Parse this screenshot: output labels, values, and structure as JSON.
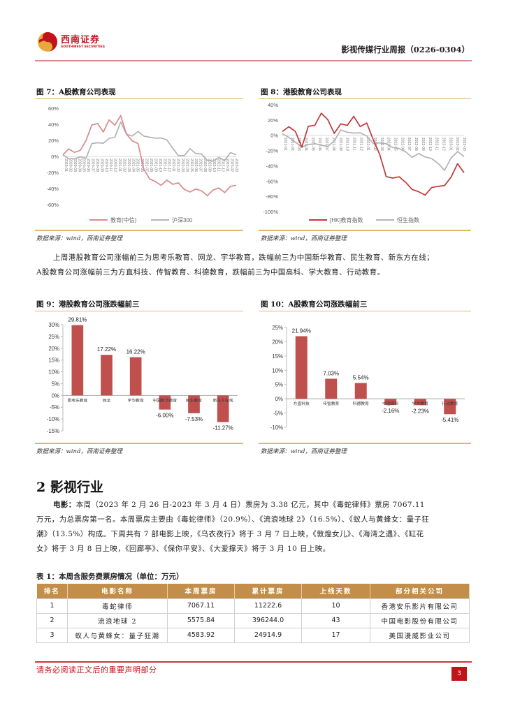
{
  "header": {
    "logo_name": "西南证券",
    "logo_sub": "SOUTHWEST SECURITIES",
    "report_title": "影视传媒行业周报（0226-0304）",
    "colors": {
      "brand_red": "#c0141b",
      "rule": "#d78b8f"
    }
  },
  "figures": {
    "fig7": {
      "title": "图 7：A股教育公司表现",
      "source": "数据来源：wind，西南证券整理"
    },
    "fig8": {
      "title": "图 8：港股教育公司表现",
      "source": "数据来源：wind，西南证券整理"
    },
    "fig9": {
      "title": "图 9：港股教育公司涨跌幅前三",
      "source": "数据来源：wind，西南证券整理"
    },
    "fig10": {
      "title": "图 10：A股教育公司涨跌幅前三",
      "source": "数据来源：wind，西南证券整理"
    }
  },
  "paragraph1": "上周港股教育公司涨幅前三为思考乐教育、网龙、宇华教育，跌幅前三为中国新华教育、民生教育、新东方在线；A股教育公司涨幅前三为方直科技、传智教育、科德教育，跌幅前三为中国高科、学大教育、行动教育。",
  "section": {
    "number": "2",
    "title": "影视行业"
  },
  "paragraph2": {
    "lead": "电影：",
    "body": "本周（2023 年 2 月 26 日-2023 年 3 月 4 日）票房为 3.38 亿元，其中《毒蛇律师》票房 7067.11 万元，为总票房第一名。本周票房主要由《毒蛇律师》（20.9%）、《流浪地球 2》（16.5%）、《蚁人与黄蜂女：量子狂潮》（13.5%）构成。下周共有 7 部电影上映，《乌衣夜行》将于 3 月 7 日上映，《敦煌女儿》、《海湾之遇》、《缸花女》将于 3 月 8 日上映，《回廊亭》、《保你平安》、《大爱撑天》将于 3 月 10 日上映。"
  },
  "table": {
    "title": "表 1：本周含服务费票房情况（单位：万元）",
    "headers": [
      "排名",
      "电影名称",
      "本周票房",
      "累计票房",
      "上线天数",
      "部分相关公司"
    ],
    "rows": [
      [
        "1",
        "毒蛇律师",
        "7067.11",
        "11222.6",
        "10",
        "香港安乐影片有限公司"
      ],
      [
        "2",
        "流浪地球 2",
        "5575.84",
        "396244.0",
        "43",
        "中国电影股份有限公司"
      ],
      [
        "3",
        "蚁人与黄蜂女：量子狂潮",
        "4583.92",
        "24914.9",
        "17",
        "美国漫威影业公司"
      ]
    ],
    "header_color": "#c38e49"
  },
  "footer": {
    "disclaimer": "请务必阅读正文后的重要声明部分",
    "page": "3"
  },
  "chart_data": [
    {
      "id": "fig7",
      "type": "line",
      "title": "图 7：A股教育公司表现",
      "ylabel": "",
      "xlabel": "",
      "yticks": [
        "60%",
        "40%",
        "20%",
        "0%",
        "-20%",
        "-40%",
        "-60%"
      ],
      "ylim": [
        -60,
        60
      ],
      "x_range": "2020-01 to 2023-03 (monthly ticks, rotated)",
      "legend_position": "bottom",
      "series": [
        {
          "name": "教育(中信)",
          "color": "#d9898b",
          "values": [
            2,
            10,
            4,
            8,
            20,
            38,
            42,
            30,
            45,
            40,
            50,
            28,
            20,
            15,
            -15,
            -28,
            -32,
            -35,
            -30,
            -35,
            -32,
            -42,
            -44,
            -40,
            -44,
            -48,
            -42,
            -40,
            -44,
            -38,
            -36
          ]
        },
        {
          "name": "沪深300",
          "color": "#b3b3b3",
          "values": [
            2,
            -2,
            -4,
            0,
            -2,
            15,
            18,
            16,
            22,
            25,
            42,
            28,
            26,
            30,
            26,
            24,
            22,
            24,
            20,
            10,
            2,
            0,
            10,
            4,
            2,
            -4,
            -6,
            -2,
            -4,
            4,
            2
          ]
        }
      ]
    },
    {
      "id": "fig8",
      "type": "line",
      "title": "图 8：港股教育公司表现",
      "yticks": [
        "40%",
        "20%",
        "0%",
        "-20%",
        "-40%",
        "-60%",
        "-80%",
        "-100%"
      ],
      "ylim": [
        -100,
        40
      ],
      "x_range": "2021-01 to 2023-03 (monthly ticks, rotated)",
      "legend_position": "bottom",
      "series": [
        {
          "name": "[HK]教育指数",
          "color": "#c0373b",
          "values": [
            5,
            12,
            4,
            -15,
            12,
            12,
            30,
            20,
            2,
            16,
            12,
            25,
            12,
            15,
            -5,
            -25,
            -55,
            -55,
            -55,
            -62,
            -70,
            -75,
            -78,
            -68,
            -68,
            -65,
            -55,
            -38,
            -48
          ]
        },
        {
          "name": "恒生指数",
          "color": "#b3b3b3",
          "values": [
            2,
            -2,
            -10,
            -15,
            -12,
            -12,
            -12,
            -15,
            -8,
            8,
            3,
            3,
            4,
            -2,
            -10,
            -10,
            -12,
            -15,
            -18,
            -22,
            -28,
            -25,
            -28,
            -30,
            -38,
            -45,
            -30,
            -22,
            -27
          ]
        }
      ]
    },
    {
      "id": "fig9",
      "type": "bar",
      "title": "图 9：港股教育公司涨跌幅前三",
      "categories": [
        "思考乐教育",
        "网龙",
        "宇华教育",
        "中国新华教育",
        "民生教育",
        "新东方在线"
      ],
      "values": [
        29.81,
        17.22,
        16.22,
        -6.0,
        -7.53,
        -11.27
      ],
      "labels": [
        "29.81%",
        "17.22%",
        "16.22%",
        "-6.00%",
        "-7.53%",
        "-11.27%"
      ],
      "yticks": [
        "30%",
        "25%",
        "20%",
        "15%",
        "10%",
        "5%",
        "0%",
        "-5%",
        "-10%",
        "-15%"
      ],
      "ylim": [
        -15,
        30
      ],
      "color": "#c0504d"
    },
    {
      "id": "fig10",
      "type": "bar",
      "title": "图 10：A股教育公司涨跌幅前三",
      "categories": [
        "方直科技",
        "传智教育",
        "科德教育",
        "中国高科",
        "学大教育",
        "行动教育"
      ],
      "values": [
        21.94,
        7.03,
        5.54,
        -2.16,
        -2.23,
        -5.41
      ],
      "labels": [
        "21.94%",
        "7.03%",
        "5.54%",
        "-2.16%",
        "-2.23%",
        "-5.41%"
      ],
      "yticks": [
        "25%",
        "20%",
        "15%",
        "10%",
        "5%",
        "0%",
        "-5%",
        "-10%"
      ],
      "ylim": [
        -10,
        25
      ],
      "color": "#c0504d"
    }
  ]
}
